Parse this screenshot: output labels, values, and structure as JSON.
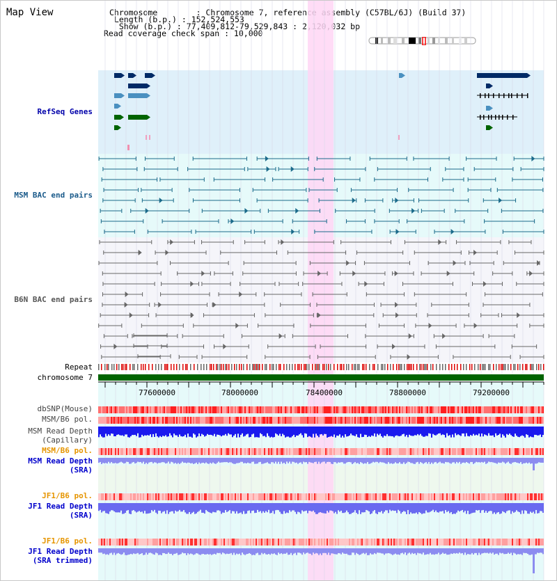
{
  "view_title": "Map View",
  "info": {
    "chromosome_line": "Chromosome        : Chromosome 7, reference assembly (C57BL/6J) (Build 37)",
    "length_line": " Length (b.p.) : 152,524,553",
    "show_line": "  Show (b.p.) : 77,409,812-79,529,843 : 2,120,032 bp",
    "coverage_line": "Read coverage check span : 10,000"
  },
  "tracks": {
    "refseq": "RefSeq Genes",
    "msm_bac": "MSM BAC end pairs",
    "b6n_bac": "B6N BAC end pairs",
    "repeat": "Repeat",
    "chromosome": "chromosome 7",
    "dbsnp": "dbSNP(Mouse)",
    "msm_b6_pol_1": "MSM/B6 pol.",
    "msm_depth_cap_1": "MSM Read Depth",
    "msm_depth_cap_2": "(Capillary)",
    "msm_b6_pol_2": "MSM/B6 pol.",
    "msm_depth_sra_1": "MSM Read Depth",
    "msm_depth_sra_2": "(SRA)",
    "jf1_b6_pol_1": "JF1/B6 pol.",
    "jf1_depth_sra_1": "JF1 Read Depth",
    "jf1_depth_sra_2": "(SRA)",
    "jf1_b6_pol_2": "JF1/B6 pol.",
    "jf1_depth_trim_1": "JF1 Read Depth",
    "jf1_depth_trim_2": "(SRA trimmed)"
  },
  "axis": {
    "ticks": [
      "77600000",
      "78000000",
      "78400000",
      "78800000",
      "79200000"
    ]
  },
  "colors": {
    "refseq_bg": "#dff0fa",
    "bac_bg": "#e6fafa",
    "b6n_bg": "#f5f5fa",
    "chromosome_bar": "#006400",
    "highlight": "#ffd6f5",
    "msm_line": "#1a6a8a",
    "b6n_line": "#666666",
    "depth_cap": "#1a1aee",
    "depth_sra": "#8c8cf0"
  }
}
